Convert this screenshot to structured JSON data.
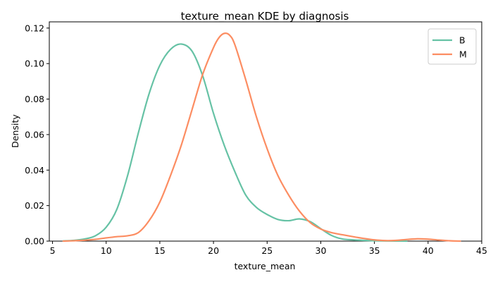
{
  "chart_data": {
    "type": "line",
    "title": "texture_mean KDE by diagnosis",
    "xlabel": "texture_mean",
    "ylabel": "Density",
    "xlim": [
      4.7,
      45.0
    ],
    "ylim": [
      0,
      0.1235
    ],
    "x_ticks": [
      5,
      10,
      15,
      20,
      25,
      30,
      35,
      40,
      45
    ],
    "x_tick_labels": [
      "5",
      "10",
      "15",
      "20",
      "25",
      "30",
      "35",
      "40",
      "45"
    ],
    "y_ticks": [
      0,
      0.02,
      0.04,
      0.06,
      0.08,
      0.1,
      0.12
    ],
    "y_tick_labels": [
      "0.00",
      "0.02",
      "0.04",
      "0.06",
      "0.08",
      "0.10",
      "0.12"
    ],
    "grid": false,
    "legend_position": "top-right",
    "series": [
      {
        "name": "B",
        "color": "#66c2a5",
        "x": [
          6.0,
          7.0,
          8.0,
          9.0,
          10.0,
          11.0,
          12.0,
          13.0,
          14.0,
          15.0,
          16.0,
          17.0,
          18.0,
          19.0,
          20.0,
          21.0,
          22.0,
          23.0,
          24.0,
          25.0,
          26.0,
          27.0,
          28.0,
          29.0,
          30.0,
          31.0,
          32.0,
          33.0,
          34.0,
          35.0,
          36.0,
          37.0,
          38.0
        ],
        "y": [
          0.0001,
          0.0004,
          0.0012,
          0.003,
          0.0078,
          0.018,
          0.037,
          0.061,
          0.083,
          0.099,
          0.108,
          0.111,
          0.107,
          0.093,
          0.072,
          0.054,
          0.039,
          0.026,
          0.019,
          0.015,
          0.0122,
          0.0115,
          0.0125,
          0.011,
          0.007,
          0.0032,
          0.0012,
          0.0007,
          0.0004,
          0.0002,
          0.0001,
          5e-05,
          0.0
        ]
      },
      {
        "name": "M",
        "color": "#fc8d62",
        "x": [
          6.0,
          7.0,
          8.0,
          9.0,
          10.0,
          11.0,
          12.0,
          13.0,
          14.0,
          15.0,
          16.0,
          17.0,
          18.0,
          19.0,
          20.0,
          20.5,
          21.0,
          21.5,
          22.0,
          23.0,
          24.0,
          25.0,
          26.0,
          27.0,
          28.0,
          29.0,
          30.0,
          31.0,
          32.0,
          33.0,
          34.0,
          35.0,
          36.0,
          37.0,
          38.0,
          39.0,
          40.0,
          41.0,
          42.0,
          43.0
        ],
        "y": [
          0.0,
          0.0002,
          0.0005,
          0.001,
          0.0018,
          0.0025,
          0.003,
          0.0048,
          0.0115,
          0.022,
          0.037,
          0.054,
          0.074,
          0.094,
          0.109,
          0.1145,
          0.117,
          0.116,
          0.1105,
          0.091,
          0.07,
          0.052,
          0.037,
          0.026,
          0.017,
          0.0105,
          0.0068,
          0.0048,
          0.0036,
          0.0025,
          0.0015,
          0.0007,
          0.0003,
          0.0004,
          0.0009,
          0.0013,
          0.0011,
          0.0006,
          0.0002,
          0.0
        ]
      }
    ]
  }
}
